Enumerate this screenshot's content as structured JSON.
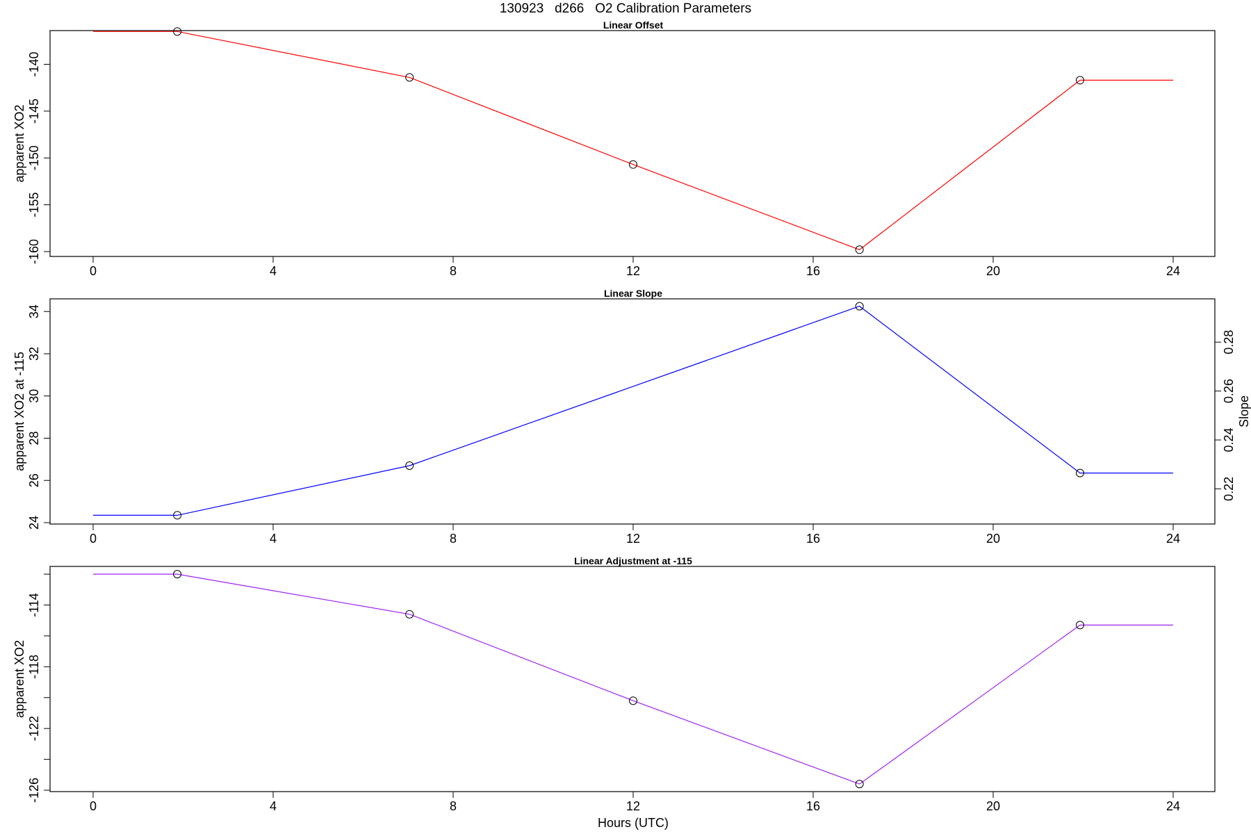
{
  "title": "130923   d266   O2 Calibration Parameters",
  "chart_data": [
    {
      "type": "line",
      "title": "Linear Offset",
      "xlabel": "",
      "ylabel": "apparent XO2",
      "xlim": [
        0,
        24
      ],
      "ylim": [
        -160,
        -136.4
      ],
      "xticks": [
        0,
        4,
        8,
        12,
        16,
        20,
        24
      ],
      "yticks": [
        -160,
        -155,
        -150,
        -145,
        -140
      ],
      "grid": false,
      "color": "#ff0000",
      "points": [
        {
          "x": 1.87,
          "y": -136.5
        },
        {
          "x": 7.03,
          "y": -141.4
        },
        {
          "x": 12.0,
          "y": -150.7
        },
        {
          "x": 17.03,
          "y": -159.8
        },
        {
          "x": 21.93,
          "y": -141.7
        }
      ],
      "line": [
        [
          0,
          -136.5
        ],
        [
          1.87,
          -136.5
        ],
        [
          7.03,
          -141.4
        ],
        [
          12.0,
          -150.7
        ],
        [
          17.03,
          -159.8
        ],
        [
          21.93,
          -141.7
        ],
        [
          24,
          -141.7
        ]
      ]
    },
    {
      "type": "line",
      "title": "Linear Slope",
      "xlabel": "",
      "ylabel": "apparent XO2 at -115",
      "ylabel_right": "Slope",
      "xlim": [
        0,
        24
      ],
      "ylim": [
        24,
        34.6
      ],
      "xticks": [
        0,
        4,
        8,
        12,
        16,
        20,
        24
      ],
      "yticks": [
        24,
        26,
        28,
        30,
        32,
        34
      ],
      "right_axis": {
        "ticks": [
          0.22,
          0.24,
          0.26,
          0.28
        ],
        "map": [
          [
            0.22,
            25.6
          ],
          [
            0.28,
            32.55
          ]
        ]
      },
      "grid": false,
      "color": "#0000ff",
      "points": [
        {
          "x": 1.87,
          "y": 24.35
        },
        {
          "x": 7.03,
          "y": 26.7
        },
        {
          "x": 17.03,
          "y": 34.25
        },
        {
          "x": 21.93,
          "y": 26.35
        }
      ],
      "line": [
        [
          0,
          24.35
        ],
        [
          1.87,
          24.35
        ],
        [
          7.03,
          26.7
        ],
        [
          17.03,
          34.25
        ],
        [
          21.93,
          26.35
        ],
        [
          24,
          26.35
        ]
      ]
    },
    {
      "type": "line",
      "title": "Linear Adjustment at -115",
      "xlabel": "Hours (UTC)",
      "ylabel": "apparent XO2",
      "xlim": [
        0,
        24
      ],
      "ylim": [
        -126,
        -111.5
      ],
      "xticks": [
        0,
        4,
        8,
        12,
        16,
        20,
        24
      ],
      "yticks": [
        -126,
        -124,
        -122,
        -120,
        -118,
        -116,
        -114,
        -112
      ],
      "yticklabels": {
        "-126": "-126",
        "-122": "-122",
        "-118": "-118",
        "-114": "-114"
      },
      "grid": false,
      "color": "#a020f0",
      "points": [
        {
          "x": 1.87,
          "y": -112.0
        },
        {
          "x": 7.03,
          "y": -114.6
        },
        {
          "x": 12.0,
          "y": -120.2
        },
        {
          "x": 17.03,
          "y": -125.6
        },
        {
          "x": 21.93,
          "y": -115.3
        }
      ],
      "line": [
        [
          0,
          -112.0
        ],
        [
          1.87,
          -112.0
        ],
        [
          7.03,
          -114.6
        ],
        [
          12.0,
          -120.2
        ],
        [
          17.03,
          -125.6
        ],
        [
          21.93,
          -115.3
        ],
        [
          24,
          -115.3
        ]
      ]
    }
  ]
}
